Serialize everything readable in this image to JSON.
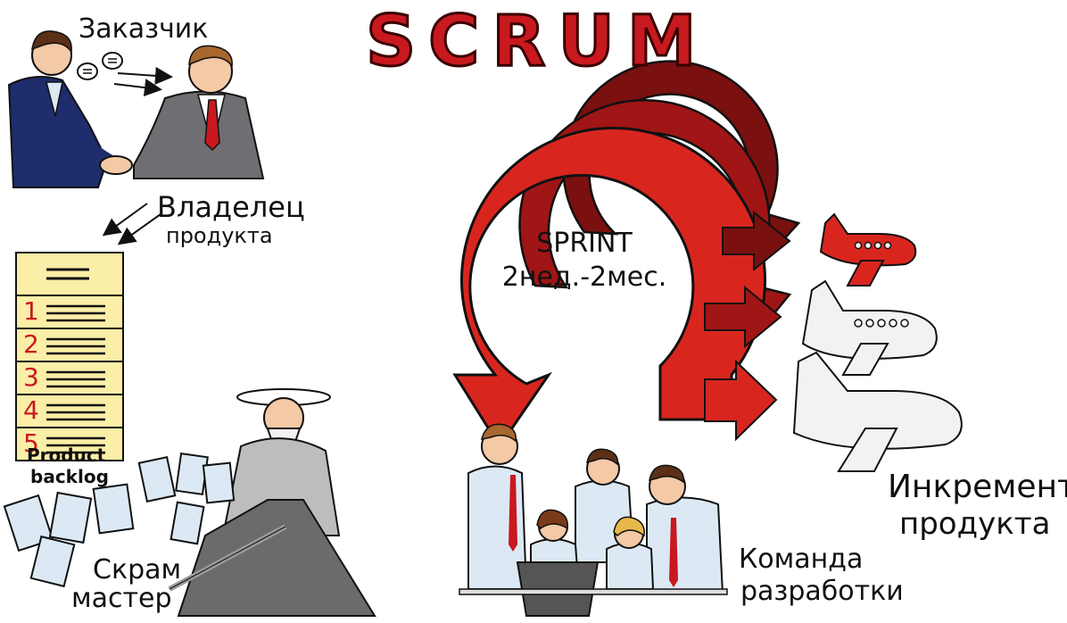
{
  "title": "SCRUM",
  "roles": {
    "customer": "Заказчик",
    "product_owner_line1": "Владелец",
    "product_owner_line2": "продукта",
    "scrum_master_line1": "Скрам",
    "scrum_master_line2": "мастер",
    "dev_team_line1": "Команда",
    "dev_team_line2": "разработки"
  },
  "backlog": {
    "label_line1": "Product",
    "label_line2": "backlog",
    "items": [
      "1",
      "2",
      "3",
      "4",
      "5"
    ]
  },
  "sprint": {
    "label": "SPRINT",
    "duration": "2нед.-2мес."
  },
  "increment": {
    "label_line1": "Инкремент",
    "label_line2": "продукта"
  },
  "colors": {
    "red": "#d8261f",
    "dark_red": "#a01515",
    "darker_red": "#7a1010",
    "backlog_yellow": "#fbeea6",
    "suit_navy": "#1e2d6b",
    "suit_gray": "#6f6f73",
    "shirt_blue": "#cfe1f1"
  }
}
